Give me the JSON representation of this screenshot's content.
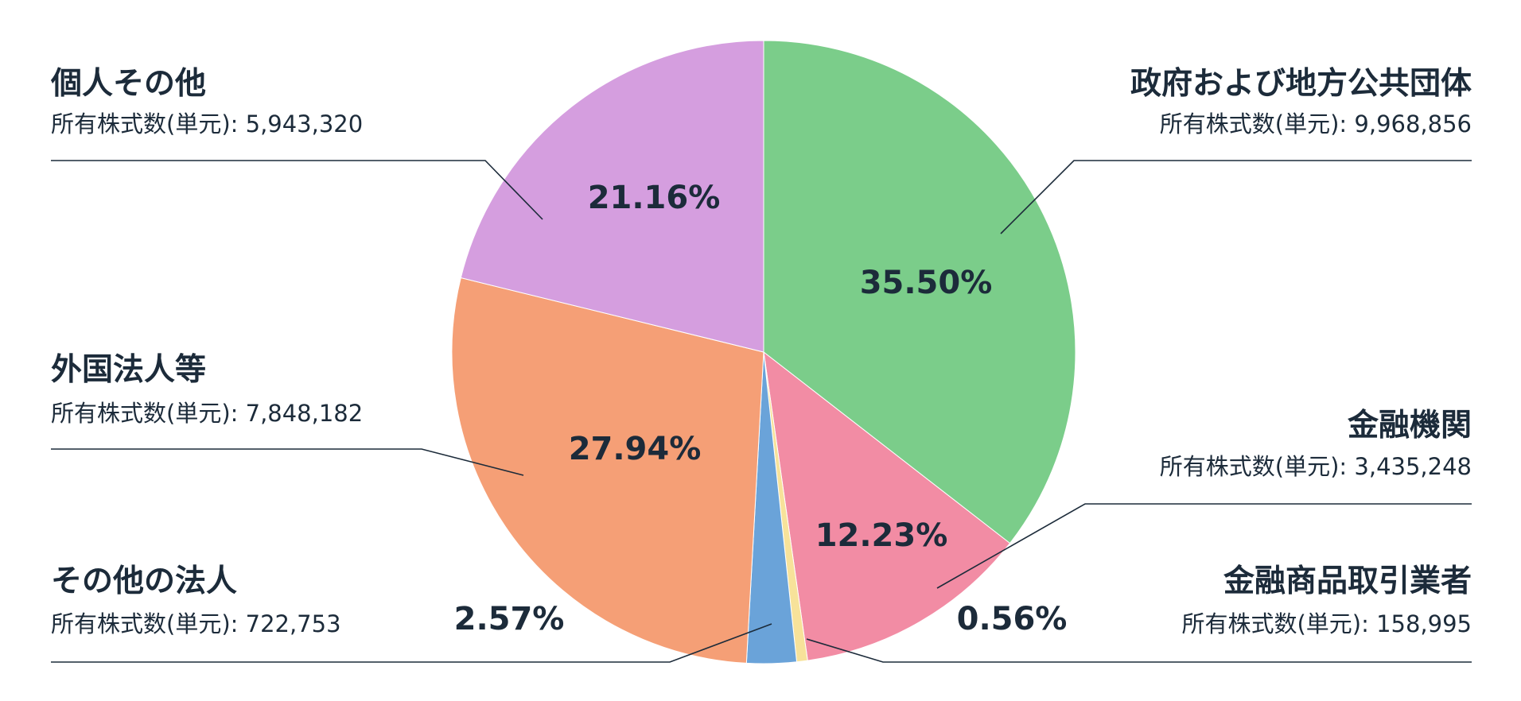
{
  "chart_data": {
    "type": "pie",
    "shares_prefix": "所有株式数(単元):",
    "slices": [
      {
        "name": "政府および地方公共団体",
        "shares": "9,968,856",
        "percent": 35.5,
        "label": "35.50%",
        "color": "#7bcd8a"
      },
      {
        "name": "金融機関",
        "shares": "3,435,248",
        "percent": 12.23,
        "label": "12.23%",
        "color": "#f28ca4"
      },
      {
        "name": "金融商品取引業者",
        "shares": "158,995",
        "percent": 0.56,
        "label": "0.56%",
        "color": "#f7e29a"
      },
      {
        "name": "その他の法人",
        "shares": "722,753",
        "percent": 2.57,
        "label": "2.57%",
        "color": "#6aa3d9"
      },
      {
        "name": "外国法人等",
        "shares": "7,848,182",
        "percent": 27.94,
        "label": "27.94%",
        "color": "#f59f76"
      },
      {
        "name": "個人その他",
        "shares": "5,943,320",
        "percent": 21.16,
        "label": "21.16%",
        "color": "#d59edf"
      }
    ]
  }
}
